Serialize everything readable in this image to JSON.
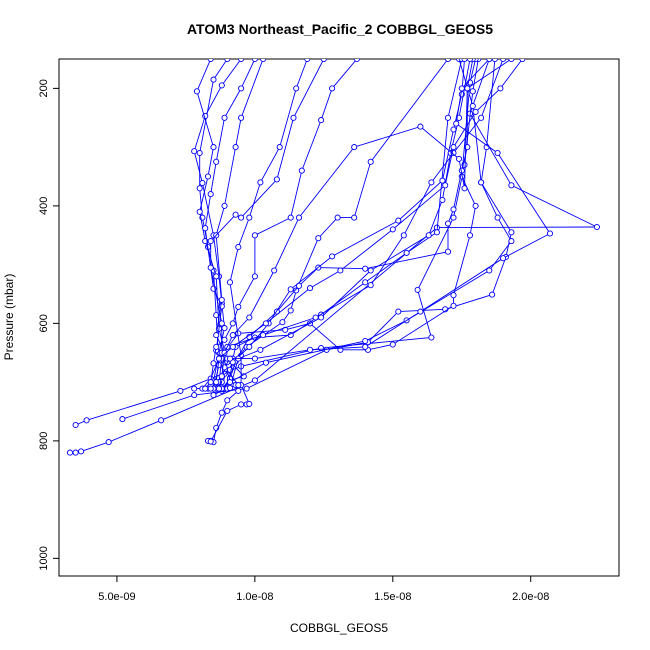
{
  "chart_data": {
    "type": "line",
    "title": "ATOM3 Northeast_Pacific_2 COBBGL_GEOS5",
    "xlabel": "COBBGL_GEOS5",
    "ylabel": "Pressure (mbar)",
    "xlim": [
      2.9e-09,
      2.32e-08
    ],
    "ylim": [
      1030,
      150
    ],
    "y_reversed": true,
    "grid": false,
    "legend": "none",
    "series_color": "#0000ff",
    "x_ticks": [
      {
        "value": 5e-09,
        "label": "5.0e-09"
      },
      {
        "value": 1e-08,
        "label": "1.0e-08"
      },
      {
        "value": 1.5e-08,
        "label": "1.5e-08"
      },
      {
        "value": 2e-08,
        "label": "2.0e-08"
      }
    ],
    "y_ticks": [
      {
        "value": 200,
        "label": "200"
      },
      {
        "value": 400,
        "label": "400"
      },
      {
        "value": 600,
        "label": "600"
      },
      {
        "value": 800,
        "label": "800"
      },
      {
        "value": 1000,
        "label": "1000"
      }
    ],
    "series": [
      {
        "points": [
          [
            3.3e-09,
            820
          ],
          [
            3.5e-09,
            820
          ],
          [
            3.7e-09,
            818
          ],
          [
            4.7e-09,
            802
          ],
          [
            6.6e-09,
            765
          ],
          [
            1e-08,
            697
          ],
          [
            1.66e-08,
            437
          ],
          [
            2.24e-08,
            436
          ],
          [
            1.93e-08,
            365
          ],
          [
            1.78e-08,
            243
          ],
          [
            1.85e-08,
            150
          ]
        ]
      },
      {
        "points": [
          [
            3.5e-09,
            773
          ],
          [
            3.9e-09,
            765
          ],
          [
            7.3e-09,
            715
          ],
          [
            9.5e-09,
            673
          ],
          [
            1.24e-08,
            642
          ],
          [
            1.64e-08,
            624
          ],
          [
            1.59e-08,
            543
          ],
          [
            1.72e-08,
            420
          ],
          [
            1.76e-08,
            330
          ],
          [
            1.79e-08,
            205
          ],
          [
            1.81e-08,
            150
          ]
        ]
      },
      {
        "points": [
          [
            5.2e-09,
            763
          ],
          [
            7.8e-09,
            722
          ],
          [
            9.7e-09,
            711
          ],
          [
            1.26e-08,
            645
          ],
          [
            1.41e-08,
            632
          ],
          [
            1.52e-08,
            580
          ],
          [
            1.69e-08,
            576
          ],
          [
            1.86e-08,
            551
          ],
          [
            1.91e-08,
            487
          ],
          [
            1.93e-08,
            445
          ],
          [
            1.82e-08,
            360
          ],
          [
            1.79e-08,
            230
          ],
          [
            1.74e-08,
            150
          ]
        ]
      },
      {
        "points": [
          [
            7.8e-09,
            711
          ],
          [
            8.1e-09,
            711
          ],
          [
            8.4e-09,
            694
          ],
          [
            8.7e-09,
            660
          ],
          [
            9.4e-09,
            617
          ],
          [
            1.11e-08,
            611
          ],
          [
            1.2e-08,
            600
          ],
          [
            1.31e-08,
            645
          ],
          [
            1.41e-08,
            645
          ],
          [
            1.5e-08,
            636
          ],
          [
            1.72e-08,
            570
          ],
          [
            1.72e-08,
            552
          ],
          [
            1.78e-08,
            450
          ],
          [
            1.8e-08,
            400
          ],
          [
            1.75e-08,
            350
          ],
          [
            1.78e-08,
            190
          ],
          [
            1.8e-08,
            150
          ]
        ]
      },
      {
        "points": [
          [
            8.3e-09,
            711
          ],
          [
            8.5e-09,
            711
          ],
          [
            8.7e-09,
            671
          ],
          [
            8.6e-09,
            586
          ],
          [
            8.5e-09,
            510
          ],
          [
            8.3e-09,
            470
          ],
          [
            8.1e-09,
            420
          ],
          [
            8e-09,
            370
          ],
          [
            8e-09,
            310
          ],
          [
            8.5e-09,
            185
          ],
          [
            9e-09,
            150
          ]
        ]
      },
      {
        "points": [
          [
            8.5e-09,
            699
          ],
          [
            8.7e-09,
            650
          ],
          [
            8.9e-09,
            608
          ],
          [
            8.8e-09,
            566
          ],
          [
            8.7e-09,
            520
          ],
          [
            8.5e-09,
            450
          ],
          [
            8.1e-09,
            361
          ],
          [
            7.8e-09,
            307
          ],
          [
            8.2e-09,
            247
          ],
          [
            8.8e-09,
            195
          ],
          [
            9.5e-09,
            150
          ]
        ]
      },
      {
        "points": [
          [
            8.6e-09,
            711
          ],
          [
            8.8e-09,
            715
          ],
          [
            9e-09,
            666
          ],
          [
            8.7e-09,
            609
          ],
          [
            8.6e-09,
            520
          ],
          [
            8.2e-09,
            460
          ],
          [
            8e-09,
            410
          ],
          [
            8.3e-09,
            350
          ],
          [
            8.5e-09,
            300
          ],
          [
            7.9e-09,
            205
          ],
          [
            8.4e-09,
            150
          ]
        ]
      },
      {
        "points": [
          [
            8.4e-09,
            800
          ],
          [
            8.5e-09,
            802
          ],
          [
            8.6e-09,
            778
          ],
          [
            8.8e-09,
            752
          ],
          [
            9e-09,
            731
          ],
          [
            9.4e-09,
            715
          ],
          [
            9.1e-09,
            693
          ],
          [
            8.6e-09,
            646
          ],
          [
            8.8e-09,
            571
          ],
          [
            8.5e-09,
            541
          ],
          [
            8.2e-09,
            438
          ],
          [
            8.4e-09,
            380
          ],
          [
            8.6e-09,
            325
          ],
          [
            8.9e-09,
            250
          ],
          [
            9.5e-09,
            200
          ],
          [
            1e-08,
            150
          ]
        ]
      },
      {
        "points": [
          [
            8.3e-09,
            800
          ],
          [
            8.4e-09,
            801
          ],
          [
            9e-09,
            749
          ],
          [
            9.5e-09,
            738
          ],
          [
            9.7e-09,
            738
          ],
          [
            9.8e-09,
            737
          ],
          [
            9.5e-09,
            705
          ],
          [
            9.5e-09,
            655
          ],
          [
            9.1e-09,
            530
          ],
          [
            9.4e-09,
            470
          ],
          [
            9.8e-09,
            420
          ],
          [
            1.02e-08,
            360
          ],
          [
            1.09e-08,
            300
          ],
          [
            1.15e-08,
            200
          ],
          [
            1.19e-08,
            150
          ]
        ]
      },
      {
        "points": [
          [
            8.5e-09,
            711
          ],
          [
            8.8e-09,
            711
          ],
          [
            9.1e-09,
            697
          ],
          [
            9.6e-09,
            690
          ],
          [
            9e-09,
            660
          ],
          [
            8.6e-09,
            620
          ],
          [
            8.8e-09,
            560
          ],
          [
            8.6e-09,
            450
          ],
          [
            8.9e-09,
            400
          ],
          [
            9.3e-09,
            300
          ],
          [
            9.5e-09,
            250
          ],
          [
            1.03e-08,
            150
          ]
        ]
      },
      {
        "points": [
          [
            8.5e-09,
            722
          ],
          [
            8.9e-09,
            712
          ],
          [
            9.3e-09,
            705
          ],
          [
            9.4e-09,
            705
          ],
          [
            9e-09,
            680
          ],
          [
            8.8e-09,
            650
          ],
          [
            8.8e-09,
            600
          ],
          [
            8.4e-09,
            505
          ],
          [
            8.4e-09,
            460
          ],
          [
            9.3e-09,
            415
          ],
          [
            9.5e-09,
            420
          ],
          [
            1.08e-08,
            355
          ],
          [
            1.14e-08,
            250
          ],
          [
            1.25e-08,
            150
          ]
        ]
      },
      {
        "points": [
          [
            8.6e-09,
            711
          ],
          [
            8.7e-09,
            711
          ],
          [
            8.9e-09,
            686
          ],
          [
            9.7e-09,
            640
          ],
          [
            1.1e-08,
            598
          ],
          [
            1.13e-08,
            578
          ],
          [
            1.15e-08,
            544
          ],
          [
            1.23e-08,
            455
          ],
          [
            1.3e-08,
            420
          ],
          [
            1.36e-08,
            420
          ],
          [
            1.42e-08,
            325
          ],
          [
            1.7e-08,
            150
          ]
        ]
      },
      {
        "points": [
          [
            8.7e-09,
            711
          ],
          [
            8.8e-09,
            712
          ],
          [
            9.1e-09,
            694
          ],
          [
            9.3e-09,
            665
          ],
          [
            9.8e-09,
            623
          ],
          [
            1.08e-08,
            580
          ],
          [
            1.16e-08,
            536
          ],
          [
            1.23e-08,
            505
          ],
          [
            1.4e-08,
            507
          ],
          [
            1.7e-08,
            478
          ],
          [
            1.7e-08,
            430
          ],
          [
            1.72e-08,
            406
          ],
          [
            1.75e-08,
            340
          ],
          [
            1.77e-08,
            300
          ],
          [
            1.77e-08,
            200
          ],
          [
            1.79e-08,
            150
          ]
        ]
      },
      {
        "points": [
          [
            8.2e-09,
            711
          ],
          [
            8.4e-09,
            700
          ],
          [
            8.5e-09,
            668
          ],
          [
            8.6e-09,
            640
          ],
          [
            8.9e-09,
            628
          ],
          [
            9.2e-09,
            600
          ],
          [
            9.4e-09,
            572
          ],
          [
            1e-08,
            520
          ],
          [
            1e-08,
            450
          ],
          [
            1.13e-08,
            420
          ],
          [
            1.17e-08,
            340
          ],
          [
            1.24e-08,
            254
          ],
          [
            1.28e-08,
            200
          ],
          [
            1.37e-08,
            150
          ]
        ]
      },
      {
        "points": [
          [
            8.5e-09,
            711
          ],
          [
            8.6e-09,
            711
          ],
          [
            8.8e-09,
            690
          ],
          [
            9.1e-09,
            679
          ],
          [
            9.2e-09,
            660
          ],
          [
            9.3e-09,
            640
          ],
          [
            1e-08,
            624
          ],
          [
            1.13e-08,
            620
          ],
          [
            1.24e-08,
            585
          ],
          [
            1.4e-08,
            530
          ],
          [
            1.55e-08,
            480
          ],
          [
            1.66e-08,
            445
          ],
          [
            1.7e-08,
            250
          ],
          [
            1.75e-08,
            150
          ]
        ]
      },
      {
        "points": [
          [
            8.9e-09,
            711
          ],
          [
            9e-09,
            711
          ],
          [
            9.2e-09,
            666
          ],
          [
            9.8e-09,
            640
          ],
          [
            1.05e-08,
            600
          ],
          [
            1.13e-08,
            542
          ],
          [
            1.28e-08,
            486
          ],
          [
            1.52e-08,
            425
          ],
          [
            1.68e-08,
            357
          ],
          [
            1.72e-08,
            270
          ],
          [
            1.75e-08,
            210
          ],
          [
            1.76e-08,
            150
          ]
        ]
      },
      {
        "points": [
          [
            9e-09,
            711
          ],
          [
            9.1e-09,
            710
          ],
          [
            9.4e-09,
            660
          ],
          [
            1.02e-08,
            645
          ],
          [
            1.24e-08,
            590
          ],
          [
            1.42e-08,
            510
          ],
          [
            1.63e-08,
            450
          ],
          [
            1.68e-08,
            390
          ],
          [
            1.71e-08,
            310
          ],
          [
            1.74e-08,
            250
          ],
          [
            1.78e-08,
            150
          ]
        ]
      },
      {
        "points": [
          [
            8.8e-09,
            711
          ],
          [
            9.1e-09,
            700
          ],
          [
            1.04e-08,
            667
          ],
          [
            1.4e-08,
            630
          ],
          [
            1.55e-08,
            595
          ],
          [
            1.85e-08,
            510
          ],
          [
            1.93e-08,
            460
          ],
          [
            1.88e-08,
            420
          ],
          [
            1.82e-08,
            360
          ],
          [
            1.84e-08,
            300
          ],
          [
            1.87e-08,
            150
          ]
        ]
      },
      {
        "points": [
          [
            8.6e-09,
            711
          ],
          [
            8.8e-09,
            700
          ],
          [
            8.9e-09,
            675
          ],
          [
            9.1e-09,
            660
          ],
          [
            1e-08,
            660
          ],
          [
            1.2e-08,
            645
          ],
          [
            1.4e-08,
            640
          ],
          [
            1.6e-08,
            580
          ],
          [
            1.9e-08,
            489
          ],
          [
            2.07e-08,
            447
          ],
          [
            1.88e-08,
            310
          ],
          [
            1.73e-08,
            260
          ],
          [
            1.75e-08,
            200
          ],
          [
            1.85e-08,
            150
          ]
        ]
      },
      {
        "points": [
          [
            8.5e-09,
            711
          ],
          [
            8.7e-09,
            700
          ],
          [
            8.8e-09,
            660
          ],
          [
            9e-09,
            640
          ],
          [
            1.03e-08,
            620
          ],
          [
            1.22e-08,
            590
          ],
          [
            1.42e-08,
            535
          ],
          [
            1.54e-08,
            450
          ],
          [
            1.64e-08,
            360
          ],
          [
            1.72e-08,
            310
          ],
          [
            1.82e-08,
            250
          ],
          [
            1.9e-08,
            150
          ]
        ]
      },
      {
        "points": [
          [
            8.7e-09,
            711
          ],
          [
            8.8e-09,
            690
          ],
          [
            8.9e-09,
            650
          ],
          [
            9.2e-09,
            620
          ],
          [
            9.8e-09,
            590
          ],
          [
            1.07e-08,
            510
          ],
          [
            1.16e-08,
            420
          ],
          [
            1.36e-08,
            300
          ],
          [
            1.6e-08,
            265
          ],
          [
            1.74e-08,
            320
          ],
          [
            1.76e-08,
            370
          ],
          [
            1.77e-08,
            200
          ],
          [
            1.93e-08,
            150
          ]
        ]
      },
      {
        "points": [
          [
            8.4e-09,
            711
          ],
          [
            8.6e-09,
            700
          ],
          [
            8.7e-09,
            660
          ],
          [
            9.2e-09,
            640
          ],
          [
            1.04e-08,
            600
          ],
          [
            1.2e-08,
            540
          ],
          [
            1.31e-08,
            510
          ],
          [
            1.5e-08,
            440
          ],
          [
            1.69e-08,
            365
          ],
          [
            1.72e-08,
            300
          ],
          [
            1.8e-08,
            240
          ],
          [
            1.89e-08,
            200
          ],
          [
            1.97e-08,
            150
          ]
        ]
      }
    ]
  }
}
